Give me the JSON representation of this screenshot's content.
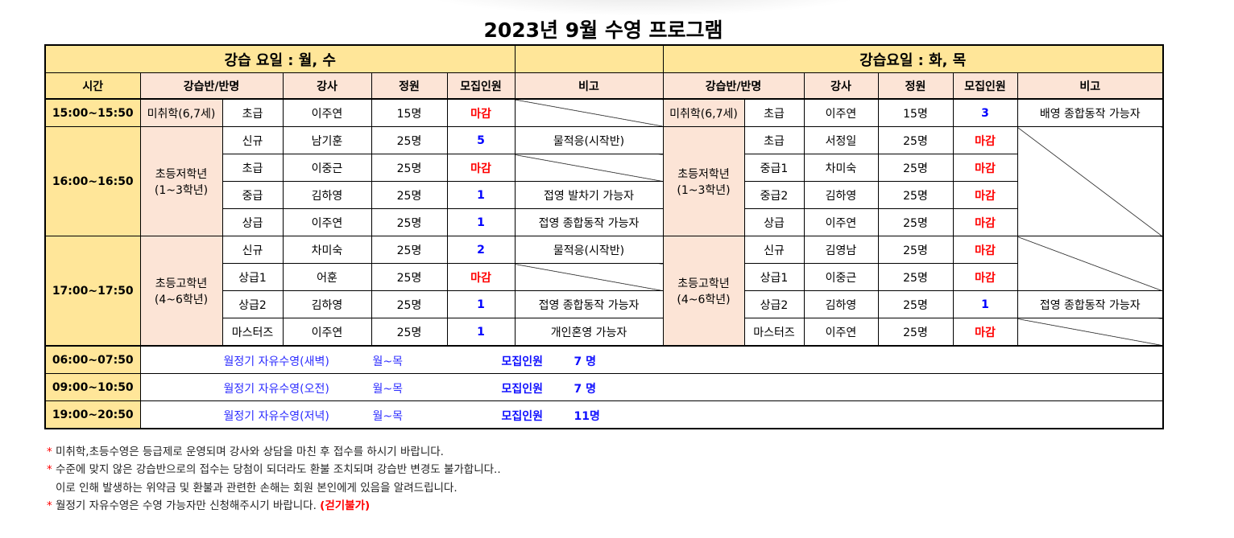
{
  "title": "2023년 9월 수영 프로그램",
  "left_day": "강습 요일 :  월, 수",
  "right_day": "강습요일 : 화, 목",
  "headers": {
    "time": "시간",
    "class": "강습반/반명",
    "teacher": "강사",
    "capacity": "정원",
    "recruit": "모집인원",
    "note": "비고"
  },
  "times": [
    "15:00~15:50",
    "16:00~16:50",
    "17:00~17:50"
  ],
  "groups": {
    "preschool": "미취학(6,7세)",
    "lower": "초등저학년\n(1~3학년)",
    "upper": "초등고학년\n(4~6학년)"
  },
  "left": [
    {
      "cls": "초급",
      "teacher": "이주연",
      "cap": "15명",
      "rec": "마감",
      "note": ""
    },
    {
      "cls": "신규",
      "teacher": "남기훈",
      "cap": "25명",
      "rec": "5",
      "note": "물적응(시작반)"
    },
    {
      "cls": "초급",
      "teacher": "이중근",
      "cap": "25명",
      "rec": "마감",
      "note": ""
    },
    {
      "cls": "중급",
      "teacher": "김하영",
      "cap": "25명",
      "rec": "1",
      "note": "접영 발차기 가능자"
    },
    {
      "cls": "상급",
      "teacher": "이주연",
      "cap": "25명",
      "rec": "1",
      "note": "접영 종합동작 가능자"
    },
    {
      "cls": "신규",
      "teacher": "차미숙",
      "cap": "25명",
      "rec": "2",
      "note": "물적응(시작반)"
    },
    {
      "cls": "상급1",
      "teacher": "어훈",
      "cap": "25명",
      "rec": "마감",
      "note": ""
    },
    {
      "cls": "상급2",
      "teacher": "김하영",
      "cap": "25명",
      "rec": "1",
      "note": "접영 종합동작 가능자"
    },
    {
      "cls": "마스터즈",
      "teacher": "이주연",
      "cap": "25명",
      "rec": "1",
      "note": "개인혼영 가능자"
    }
  ],
  "right": [
    {
      "cls": "초급",
      "teacher": "이주연",
      "cap": "15명",
      "rec": "3",
      "note": "배영 종합동작 가능자"
    },
    {
      "cls": "초급",
      "teacher": "서정일",
      "cap": "25명",
      "rec": "마감",
      "note": ""
    },
    {
      "cls": "중급1",
      "teacher": "차미숙",
      "cap": "25명",
      "rec": "마감",
      "note": ""
    },
    {
      "cls": "중급2",
      "teacher": "김하영",
      "cap": "25명",
      "rec": "마감",
      "note": ""
    },
    {
      "cls": "상급",
      "teacher": "이주연",
      "cap": "25명",
      "rec": "마감",
      "note": ""
    },
    {
      "cls": "신규",
      "teacher": "김영남",
      "cap": "25명",
      "rec": "마감",
      "note": ""
    },
    {
      "cls": "상급1",
      "teacher": "이중근",
      "cap": "25명",
      "rec": "마감",
      "note": ""
    },
    {
      "cls": "상급2",
      "teacher": "김하영",
      "cap": "25명",
      "rec": "1",
      "note": "접영 종합동작 가능자"
    },
    {
      "cls": "마스터즈",
      "teacher": "이주연",
      "cap": "25명",
      "rec": "마감",
      "note": ""
    }
  ],
  "free_swim": [
    {
      "time": "06:00~07:50",
      "name": "월정기 자유수영(새벽)",
      "days": "월~목",
      "label": "모집인원",
      "count": "7 명"
    },
    {
      "time": "09:00~10:50",
      "name": "월정기 자유수영(오전)",
      "days": "월~목",
      "label": "모집인원",
      "count": "7 명"
    },
    {
      "time": "19:00~20:50",
      "name": "월정기 자유수영(저녁)",
      "days": "월~목",
      "label": "모집인원",
      "count": "11명"
    }
  ],
  "notes": {
    "bullet": "*",
    "line1": "미취학,초등수영은 등급제로 운영되며 강사와 상담을 마친 후 접수를 하시기 바랍니다.",
    "line2": "수준에 맞지 않은 강습반으로의 접수는 당첨이 되더라도 환불 조치되며 강습반 변경도 불가합니다..",
    "line3": "이로 인해 발생하는 위약금 및 환불과 관련한 손해는 회원 본인에게 있음을 알려드립니다.",
    "line4": "월정기 자유수영은 수영 가능자만 신청해주시기 바랍니다.",
    "line4_warn": "(걷기불가)"
  },
  "colors": {
    "header_yellow": "#ffe699",
    "header_pink": "#fce4d6",
    "closed": "#ff0000",
    "open": "#0000ff"
  }
}
